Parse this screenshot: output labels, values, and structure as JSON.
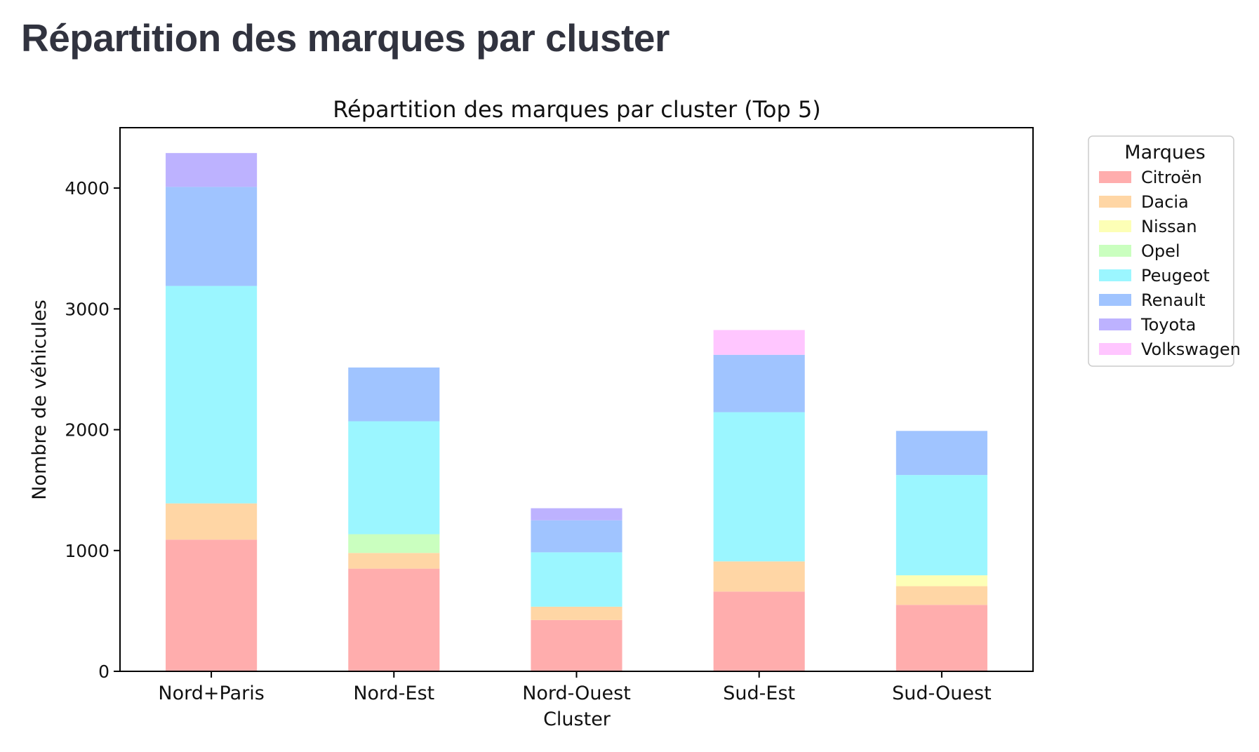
{
  "page": {
    "heading": "Répartition des marques par cluster"
  },
  "chart_data": {
    "type": "bar",
    "stacked": true,
    "title": "Répartition des marques par cluster (Top 5)",
    "xlabel": "Cluster",
    "ylabel": "Nombre de véhicules",
    "ylim": [
      0,
      4500
    ],
    "yticks": [
      0,
      1000,
      2000,
      3000,
      4000
    ],
    "grid": false,
    "categories": [
      "Nord+Paris",
      "Nord-Est",
      "Nord-Ouest",
      "Sud-Est",
      "Sud-Ouest"
    ],
    "legend": {
      "title": "Marques",
      "placement": "outside-right"
    },
    "series": [
      {
        "name": "Citroën",
        "color": "#ffadad",
        "values": [
          1090,
          850,
          425,
          660,
          550
        ]
      },
      {
        "name": "Dacia",
        "color": "#ffd6a5",
        "values": [
          300,
          130,
          110,
          250,
          155
        ]
      },
      {
        "name": "Nissan",
        "color": "#fdffb6",
        "values": [
          0,
          0,
          0,
          0,
          90
        ]
      },
      {
        "name": "Opel",
        "color": "#caffbf",
        "values": [
          0,
          155,
          0,
          0,
          0
        ]
      },
      {
        "name": "Peugeot",
        "color": "#9bf6ff",
        "values": [
          1800,
          935,
          450,
          1235,
          830
        ]
      },
      {
        "name": "Renault",
        "color": "#a0c4ff",
        "values": [
          820,
          445,
          265,
          475,
          365
        ]
      },
      {
        "name": "Toyota",
        "color": "#bdb2ff",
        "values": [
          280,
          0,
          100,
          0,
          0
        ]
      },
      {
        "name": "Volkswagen",
        "color": "#ffc6ff",
        "values": [
          0,
          0,
          0,
          205,
          0
        ]
      }
    ]
  }
}
